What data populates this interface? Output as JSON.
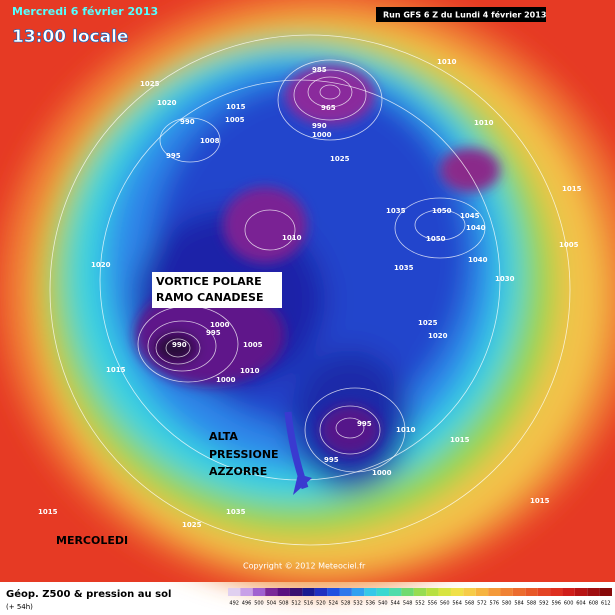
{
  "header": {
    "date": "Mercredi 6 février 2013",
    "time": "13:00 locale",
    "run": "Run GFS 6 Z du Lundi 4 février 2013"
  },
  "annotations": {
    "vortex": [
      "VORTICE POLARE",
      "RAMO CANADESE"
    ],
    "azores": [
      "ALTA",
      "PRESSIONE",
      "AZZORRE"
    ],
    "day": "MERCOLEDI"
  },
  "isobar_labels": [
    1025,
    1020,
    1015,
    1005,
    990,
    1008,
    995,
    985,
    965,
    990,
    1000,
    1010,
    1010,
    1025,
    1015,
    1035,
    1050,
    1045,
    1040,
    1050,
    1010,
    1005,
    1040,
    1030,
    1035,
    1020,
    1025,
    1020,
    1000,
    995,
    990,
    1005,
    1010,
    1000,
    1015,
    995,
    1010,
    1015,
    995,
    1000,
    1015,
    1035,
    1025,
    1015
  ],
  "copyright": "Copyright © 2012 Meteociel.fr",
  "footer": {
    "title": "Géop. Z500 & pression au sol",
    "subtitle": "(+ 54h)"
  },
  "scale": {
    "values": [
      492,
      496,
      500,
      504,
      508,
      512,
      516,
      520,
      524,
      528,
      532,
      536,
      540,
      544,
      548,
      552,
      556,
      560,
      564,
      568,
      572,
      576,
      580,
      584,
      588,
      592,
      596,
      600,
      604,
      608,
      612
    ]
  }
}
